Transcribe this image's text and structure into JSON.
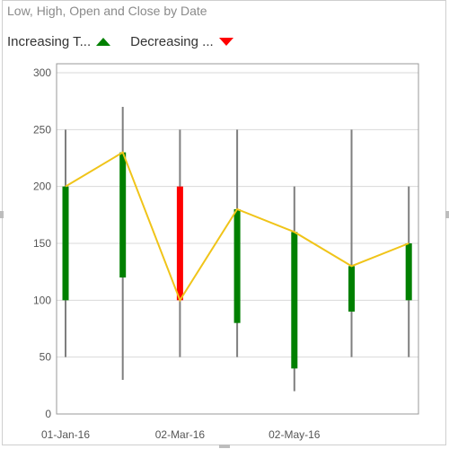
{
  "chart_data": {
    "type": "candlestick",
    "title": "Low, High, Open and Close by Date",
    "legend": [
      {
        "label": "Increasing T...",
        "marker": "triangle-up",
        "color": "#008000"
      },
      {
        "label": "Decreasing ...",
        "marker": "triangle-down",
        "color": "#ff0000"
      }
    ],
    "legend_position": "top-left",
    "grid": true,
    "ylim": [
      0,
      300
    ],
    "y_ticks": [
      "0",
      "50",
      "100",
      "150",
      "200",
      "250",
      "300"
    ],
    "x_tick_labels": [
      "01-Jan-16",
      "02-Mar-16",
      "02-May-16"
    ],
    "x_tick_indices": [
      0,
      2,
      4
    ],
    "points": [
      {
        "open": 100,
        "high": 250,
        "low": 50,
        "close": 200
      },
      {
        "open": 120,
        "high": 270,
        "low": 30,
        "close": 230
      },
      {
        "open": 200,
        "high": 250,
        "low": 50,
        "close": 100
      },
      {
        "open": 80,
        "high": 250,
        "low": 50,
        "close": 180
      },
      {
        "open": 40,
        "high": 200,
        "low": 20,
        "close": 160
      },
      {
        "open": 90,
        "high": 250,
        "low": 50,
        "close": 130
      },
      {
        "open": 100,
        "high": 200,
        "low": 50,
        "close": 150
      }
    ],
    "colors": {
      "increasing": "#008000",
      "decreasing": "#ff0000",
      "wick": "#7f7f7f",
      "close_line": "#f0c419",
      "grid": "#d9d9d9",
      "axis": "#999999",
      "tick_text": "#555555"
    }
  }
}
